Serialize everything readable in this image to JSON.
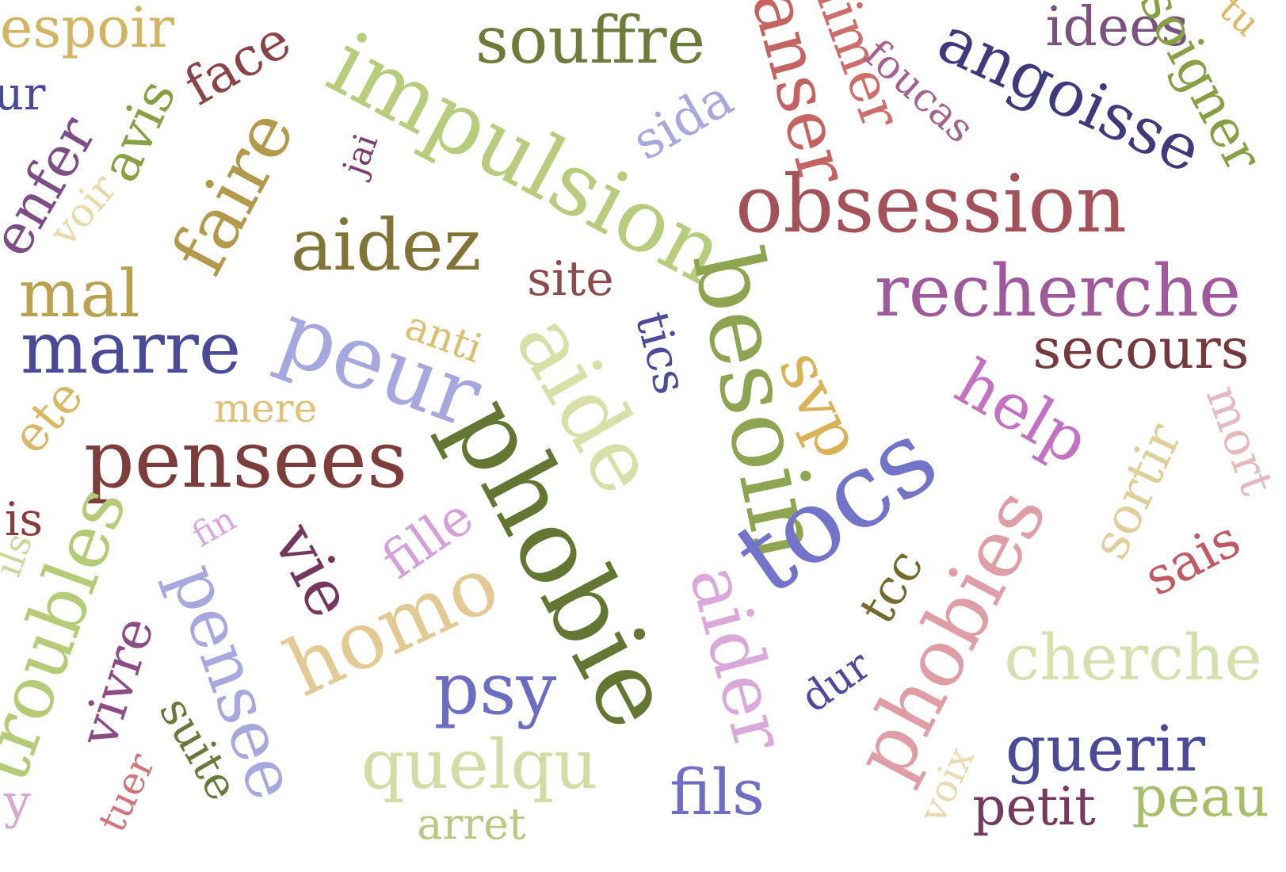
{
  "cloud": {
    "words": [
      {
        "text": "espoir",
        "color": "#d2b563"
      },
      {
        "text": "impulsion",
        "color": "#b8cc7d"
      },
      {
        "text": "souffre",
        "color": "#6d7c3b"
      },
      {
        "text": "idees",
        "color": "#7a527e"
      },
      {
        "text": "angoisse",
        "color": "#3e3a7b"
      },
      {
        "text": "aimer",
        "color": "#cd6e6b"
      },
      {
        "text": "anser",
        "color": "#c56360"
      },
      {
        "text": "foucas",
        "color": "#a5628f"
      },
      {
        "text": "sida",
        "color": "#a7a9dd"
      },
      {
        "text": "face",
        "color": "#8a4447"
      },
      {
        "text": "avis",
        "color": "#88a044"
      },
      {
        "text": "enfer",
        "color": "#7d4d86"
      },
      {
        "text": "jai",
        "color": "#7a3f6e"
      },
      {
        "text": "voir",
        "color": "#e8d9a8"
      },
      {
        "text": "faire",
        "color": "#b39a4b"
      },
      {
        "text": "aidez",
        "color": "#817437"
      },
      {
        "text": "obsession",
        "color": "#a4525a"
      },
      {
        "text": "recherche",
        "color": "#9e5a9a"
      },
      {
        "text": "secours",
        "color": "#74393c"
      },
      {
        "text": "mal",
        "color": "#b8a14f"
      },
      {
        "text": "marre",
        "color": "#4b4a98"
      },
      {
        "text": "site",
        "color": "#8d4b4d"
      },
      {
        "text": "peur",
        "color": "#a7a7df"
      },
      {
        "text": "anti",
        "color": "#dcbe6e"
      },
      {
        "text": "aide",
        "color": "#d8dfa7"
      },
      {
        "text": "tics",
        "color": "#4b4b98"
      },
      {
        "text": "besoin",
        "color": "#8da450"
      },
      {
        "text": "svp",
        "color": "#d9b256"
      },
      {
        "text": "help",
        "color": "#c272c0"
      },
      {
        "text": "mere",
        "color": "#dfc179"
      },
      {
        "text": "pensees",
        "color": "#7d3d3a"
      },
      {
        "text": "phobie",
        "color": "#637733"
      },
      {
        "text": "tocs",
        "color": "#7274c9"
      },
      {
        "text": "sortir",
        "color": "#e0cf9b"
      },
      {
        "text": "mort",
        "color": "#e4b9bf"
      },
      {
        "text": "ete",
        "color": "#d9b865"
      },
      {
        "text": "is",
        "color": "#8b3a3b"
      },
      {
        "text": "fin",
        "color": "#d8a8dc"
      },
      {
        "text": "vie",
        "color": "#74385e"
      },
      {
        "text": "fille",
        "color": "#d4a0d8"
      },
      {
        "text": "homo",
        "color": "#e3ca95"
      },
      {
        "text": "aider",
        "color": "#dba8da"
      },
      {
        "text": "tcc",
        "color": "#776a2f"
      },
      {
        "text": "phobies",
        "color": "#df9ea5"
      },
      {
        "text": "sais",
        "color": "#c25a63"
      },
      {
        "text": "troubles",
        "color": "#b5cb78"
      },
      {
        "text": "ils",
        "color": "#c9d99a"
      },
      {
        "text": "vivre",
        "color": "#8d4c86"
      },
      {
        "text": "pensee",
        "color": "#a7a9de"
      },
      {
        "text": "suite",
        "color": "#67793b"
      },
      {
        "text": "tuer",
        "color": "#cf757b"
      },
      {
        "text": "psy",
        "color": "#6b6dc3"
      },
      {
        "text": "quelqu",
        "color": "#d4dca5"
      },
      {
        "text": "arret",
        "color": "#b8c782"
      },
      {
        "text": "fils",
        "color": "#6f6ec4"
      },
      {
        "text": "dur",
        "color": "#4e4b9c"
      },
      {
        "text": "cherche",
        "color": "#d6dfae"
      },
      {
        "text": "guerir",
        "color": "#4b4a98"
      },
      {
        "text": "voix",
        "color": "#e9dbb0"
      },
      {
        "text": "petit",
        "color": "#76395f"
      },
      {
        "text": "peau",
        "color": "#a7be6b"
      },
      {
        "text": "y",
        "color": "#d8a7cf"
      },
      {
        "text": "ur",
        "color": "#4b4a98"
      },
      {
        "text": "soigner",
        "color": "#88a044"
      },
      {
        "text": "tu",
        "color": "#d8bb64"
      }
    ]
  }
}
